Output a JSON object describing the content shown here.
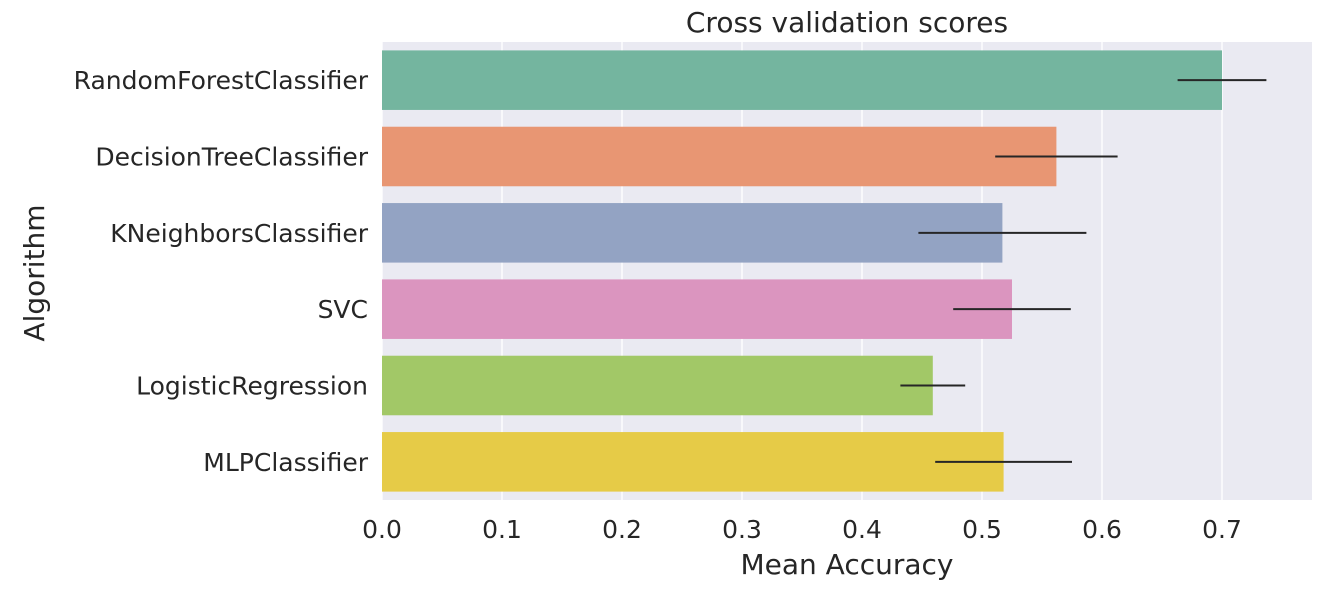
{
  "chart_data": {
    "type": "bar",
    "orientation": "horizontal",
    "title": "Cross validation scores",
    "xlabel": "Mean Accuracy",
    "ylabel": "Algorithm",
    "xlim": [
      0,
      0.775
    ],
    "grid": true,
    "xticks": [
      "0.0",
      "0.1",
      "0.2",
      "0.3",
      "0.4",
      "0.5",
      "0.6",
      "0.7"
    ],
    "categories": [
      "RandomForestClassifier",
      "DecisionTreeClassifier",
      "KNeighborsClassifier",
      "SVC",
      "LogisticRegression",
      "MLPClassifier"
    ],
    "values": [
      0.7,
      0.562,
      0.517,
      0.525,
      0.459,
      0.518
    ],
    "errors": [
      0.037,
      0.051,
      0.07,
      0.049,
      0.027,
      0.057
    ],
    "colors": [
      "#74b59f",
      "#e89673",
      "#93a3c3",
      "#db95bf",
      "#a2c867",
      "#e6cb47"
    ],
    "plot_background": "#eaeaf2"
  }
}
